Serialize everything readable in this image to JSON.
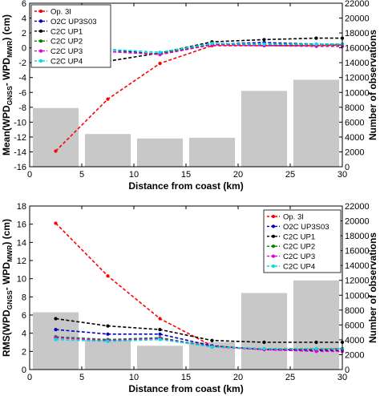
{
  "chart_data": [
    {
      "type": "bar",
      "title": "",
      "xlabel": "Distance from coast (km)",
      "ylabel": "Mean(WPD GNSS - WPD MWR) (cm)",
      "ylabel_parts": {
        "prefix": "Mean(WPD",
        "sub1": "GNSS",
        "mid": "- WPD",
        "sub2": "MWR",
        "suffix": ") (cm)"
      },
      "ylabel_right": "Number of observations",
      "xlim": [
        0,
        30
      ],
      "ylim": [
        -16,
        6
      ],
      "ylim_right": [
        0,
        22000
      ],
      "xticks": [
        "0",
        "5",
        "10",
        "15",
        "20",
        "25",
        "30"
      ],
      "yticks": [
        "-16",
        "-14",
        "-12",
        "-10",
        "-8",
        "-6",
        "-4",
        "-2",
        "0",
        "2",
        "4",
        "6"
      ],
      "yticks_right": [
        "0",
        "2000",
        "4000",
        "6000",
        "8000",
        "10000",
        "12000",
        "14000",
        "16000",
        "18000",
        "20000",
        "22000"
      ],
      "grid": false,
      "legend_position": "top-left",
      "bars": {
        "color": "#c8c8c8",
        "x": [
          2.5,
          7.5,
          12.5,
          17.5,
          22.5,
          27.5
        ],
        "values": [
          7900,
          4400,
          3800,
          3900,
          10200,
          11700
        ]
      },
      "series": [
        {
          "name": "Op. 3I",
          "color": "#ff0000",
          "x": [
            2.5,
            7.5,
            12.5,
            17.5,
            22.5,
            27.5,
            30
          ],
          "values": [
            -13.9,
            -6.9,
            -2.1,
            0.3,
            0.3,
            0.3,
            0.4
          ]
        },
        {
          "name": "O2C UP3S03",
          "color": "#0000cc",
          "x": [
            2.5,
            7.5,
            12.5,
            17.5,
            22.5,
            27.5,
            30
          ],
          "values": [
            -0.5,
            -0.2,
            -0.9,
            0.5,
            0.7,
            0.5,
            0.5
          ]
        },
        {
          "name": "C2C UP1",
          "color": "#000000",
          "x": [
            2.5,
            7.5,
            12.5,
            17.5,
            22.5,
            27.5,
            30
          ],
          "values": [
            -1.6,
            -1.8,
            -0.7,
            0.8,
            1.1,
            1.3,
            1.3
          ]
        },
        {
          "name": "C2C UP2",
          "color": "#008000",
          "x": [
            2.5,
            7.5,
            12.5,
            17.5,
            22.5,
            27.5,
            30
          ],
          "values": [
            -0.6,
            -0.5,
            -0.8,
            0.5,
            0.4,
            0.4,
            0.4
          ]
        },
        {
          "name": "C2C UP3",
          "color": "#e000e0",
          "x": [
            2.5,
            7.5,
            12.5,
            17.5,
            22.5,
            27.5,
            30
          ],
          "values": [
            -0.6,
            -0.5,
            -0.9,
            0.4,
            0.3,
            0.2,
            0.2
          ]
        },
        {
          "name": "C2C UP4",
          "color": "#00e0e0",
          "x": [
            2.5,
            7.5,
            12.5,
            17.5,
            22.5,
            27.5,
            30
          ],
          "values": [
            -0.3,
            -0.2,
            -0.6,
            0.6,
            0.5,
            0.5,
            0.5
          ]
        }
      ]
    },
    {
      "type": "bar",
      "title": "",
      "xlabel": "Distance from coast (km)",
      "ylabel": "RMS(WPD GNSS - WPD MWR) (cm)",
      "ylabel_parts": {
        "prefix": "RMS(WPD",
        "sub1": "GNSS",
        "mid": "- WPD",
        "sub2": "MWR",
        "suffix": ") (cm)"
      },
      "ylabel_right": "Number of observations",
      "xlim": [
        0,
        30
      ],
      "ylim": [
        0,
        18
      ],
      "ylim_right": [
        0,
        22000
      ],
      "xticks": [
        "0",
        "5",
        "10",
        "15",
        "20",
        "25",
        "30"
      ],
      "yticks": [
        "0",
        "2",
        "4",
        "6",
        "8",
        "10",
        "12",
        "14",
        "16",
        "18"
      ],
      "yticks_right": [
        "0",
        "2000",
        "4000",
        "6000",
        "8000",
        "10000",
        "12000",
        "14000",
        "16000",
        "18000",
        "20000",
        "22000"
      ],
      "grid": false,
      "legend_position": "top-right",
      "bars": {
        "color": "#c8c8c8",
        "x": [
          2.5,
          7.5,
          12.5,
          17.5,
          22.5,
          27.5
        ],
        "values": [
          7700,
          4000,
          3200,
          3700,
          10300,
          12000
        ]
      },
      "series": [
        {
          "name": "Op. 3I",
          "color": "#ff0000",
          "x": [
            2.5,
            7.5,
            12.5,
            17.5,
            22.5,
            27.5,
            30
          ],
          "values": [
            16.1,
            10.3,
            5.6,
            2.6,
            2.2,
            2.2,
            2.3
          ]
        },
        {
          "name": "O2C UP3S03",
          "color": "#0000cc",
          "x": [
            2.5,
            7.5,
            12.5,
            17.5,
            22.5,
            27.5,
            30
          ],
          "values": [
            4.4,
            3.9,
            3.9,
            2.6,
            2.2,
            2.1,
            2.1
          ]
        },
        {
          "name": "C2C UP1",
          "color": "#000000",
          "x": [
            2.5,
            7.5,
            12.5,
            17.5,
            22.5,
            27.5,
            30
          ],
          "values": [
            5.6,
            4.8,
            4.4,
            3.2,
            3.0,
            3.0,
            3.0
          ]
        },
        {
          "name": "C2C UP2",
          "color": "#008000",
          "x": [
            2.5,
            7.5,
            12.5,
            17.5,
            22.5,
            27.5,
            30
          ],
          "values": [
            3.6,
            3.3,
            3.5,
            2.5,
            2.3,
            2.3,
            2.3
          ]
        },
        {
          "name": "C2C UP3",
          "color": "#e000e0",
          "x": [
            2.5,
            7.5,
            12.5,
            17.5,
            22.5,
            27.5,
            30
          ],
          "values": [
            3.5,
            3.2,
            3.4,
            2.5,
            2.2,
            2.0,
            2.0
          ]
        },
        {
          "name": "C2C UP4",
          "color": "#00e0e0",
          "x": [
            2.5,
            7.5,
            12.5,
            17.5,
            22.5,
            27.5,
            30
          ],
          "values": [
            3.3,
            3.1,
            3.3,
            2.5,
            2.3,
            2.3,
            2.3
          ]
        }
      ]
    }
  ]
}
